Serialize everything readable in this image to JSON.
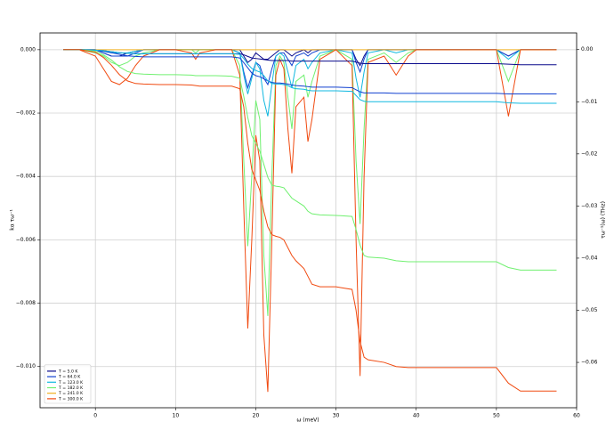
{
  "chart_data": {
    "type": "line",
    "xlabel": "ω (meV)",
    "ylabel": "kα τω⁻¹",
    "y2label": "τω⁻¹(ω) (THz)",
    "x": [
      -4,
      -2,
      0,
      1,
      2,
      3,
      4,
      5,
      6,
      8,
      10,
      12,
      12.5,
      13,
      15,
      17,
      18,
      18.5,
      19,
      19.5,
      20,
      20.5,
      21,
      21.5,
      22,
      22.5,
      23,
      23.5,
      24,
      24.5,
      25,
      26,
      26.5,
      27,
      28,
      30,
      32,
      32.5,
      33,
      33.5,
      34,
      36,
      37.5,
      39,
      40,
      45,
      50,
      51.5,
      53,
      57.5
    ],
    "xlim": [
      -6.9,
      60
    ],
    "xticks": [
      0,
      10,
      20,
      30,
      40,
      50,
      60
    ],
    "ylim": [
      -0.0113,
      0.00053
    ],
    "yticks": [
      {
        "value": 0,
        "label": "0.000"
      },
      {
        "value": -0.002,
        "label": "−0.002"
      },
      {
        "value": -0.004,
        "label": "−0.004"
      },
      {
        "value": -0.006,
        "label": "−0.006"
      },
      {
        "value": -0.008,
        "label": "−0.008"
      },
      {
        "value": -0.01,
        "label": "−0.010"
      }
    ],
    "y2lim": [
      -0.0687,
      0.0032
    ],
    "y2ticks": [
      {
        "value": 0,
        "label": "0.00"
      },
      {
        "value": -0.01,
        "label": "−0.01"
      },
      {
        "value": -0.02,
        "label": "−0.02"
      },
      {
        "value": -0.03,
        "label": "−0.03"
      },
      {
        "value": -0.04,
        "label": "−0.04"
      },
      {
        "value": -0.05,
        "label": "−0.05"
      },
      {
        "value": -0.06,
        "label": "−0.06"
      }
    ],
    "grid": true,
    "legend": "lower left",
    "series": [
      {
        "name": "T = 5.0 K",
        "color": "#0a0a8c",
        "values": [
          0,
          0,
          0,
          -0.0001,
          -0.0002,
          -0.0002,
          -0.0001,
          -5e-05,
          0,
          0,
          0,
          0,
          0,
          0,
          0,
          0,
          0,
          -0.0002,
          -0.0004,
          -0.0003,
          -0.0001,
          -0.0002,
          -0.0003,
          -0.0003,
          -0.0002,
          -0.0001,
          0,
          0,
          -0.0001,
          -0.0002,
          -0.0001,
          0,
          -0.0001,
          0,
          0,
          0,
          0,
          -0.0003,
          -0.0005,
          -0.0002,
          0,
          0,
          0,
          0,
          0,
          0,
          0,
          -0.0002,
          0,
          0
        ]
      },
      {
        "name": "T = 64.0 K",
        "color": "#1040d0",
        "values": [
          0,
          0,
          0,
          -0.0001,
          -0.0002,
          -0.0002,
          -0.0002,
          -0.0001,
          0,
          0,
          0,
          0,
          0,
          0,
          0,
          0,
          -0.0001,
          -0.0007,
          -0.0012,
          -0.0008,
          -0.0004,
          -0.0005,
          -0.0009,
          -0.0011,
          -0.0006,
          -0.0002,
          -0.0001,
          -0.0001,
          -0.0003,
          -0.0005,
          -0.0002,
          -0.0001,
          -0.0002,
          -0.0001,
          0,
          0,
          0,
          -0.0004,
          -0.0007,
          -0.0003,
          0,
          0,
          0,
          0,
          0,
          0,
          0,
          -0.0002,
          0,
          0
        ]
      },
      {
        "name": "T = 123.0 K",
        "color": "#10b8e0",
        "values": [
          0,
          0,
          0,
          -5e-05,
          -0.0001,
          -0.0001,
          -0.0001,
          -5e-05,
          0,
          0,
          0,
          0,
          0,
          0,
          0,
          0,
          -0.0001,
          -0.0008,
          -0.0014,
          -0.0009,
          -0.0004,
          -0.0006,
          -0.0016,
          -0.0021,
          -0.0011,
          -0.0002,
          -0.0001,
          -0.0002,
          -0.0007,
          -0.0012,
          -0.0005,
          -0.0003,
          -0.0006,
          -0.0004,
          -0.0001,
          0,
          -0.0001,
          -0.0009,
          -0.0015,
          -0.0007,
          -0.0001,
          0,
          -0.0001,
          0,
          0,
          0,
          0,
          -0.0003,
          0,
          0
        ]
      },
      {
        "name": "T = 182.0 K",
        "color": "#70f070",
        "values": [
          0,
          0,
          -0.0001,
          -0.0002,
          -0.0004,
          -0.0005,
          -0.0004,
          -0.0002,
          -0.0001,
          0,
          0,
          0,
          -0.0001,
          0,
          0,
          0,
          -0.0005,
          -0.0035,
          -0.0062,
          -0.004,
          -0.0016,
          -0.0022,
          -0.0065,
          -0.0084,
          -0.004,
          -0.0005,
          -0.0002,
          -0.0004,
          -0.0015,
          -0.0025,
          -0.001,
          -0.0008,
          -0.0015,
          -0.001,
          -0.0002,
          0,
          -0.0003,
          -0.0035,
          -0.0055,
          -0.0025,
          -0.0003,
          -0.0001,
          -0.0004,
          -0.0001,
          0,
          0,
          0,
          -0.001,
          0,
          0
        ]
      },
      {
        "name": "T = 241.0 K",
        "color": "#f0b020",
        "values": [
          0,
          0,
          0,
          0,
          0,
          0,
          0,
          0,
          0,
          0,
          0,
          0,
          0,
          0,
          0,
          0,
          0,
          0,
          0,
          0,
          0,
          0,
          0,
          0,
          0,
          0,
          0,
          0,
          0,
          0,
          0,
          0,
          0,
          0,
          0,
          0,
          0,
          0,
          0,
          0,
          0,
          0,
          0,
          0,
          0,
          0,
          0,
          0,
          0,
          0
        ]
      },
      {
        "name": "T = 300.0 K",
        "color": "#f04a10",
        "values": [
          0,
          0,
          -0.0002,
          -0.0006,
          -0.001,
          -0.0011,
          -0.0009,
          -0.0005,
          -0.0002,
          0,
          0,
          -0.0001,
          -0.0003,
          -0.0001,
          0,
          0,
          -0.0008,
          -0.005,
          -0.0088,
          -0.006,
          -0.0027,
          -0.0035,
          -0.009,
          -0.0108,
          -0.006,
          -0.0008,
          -0.0003,
          -0.0006,
          -0.0025,
          -0.0039,
          -0.0018,
          -0.0015,
          -0.0029,
          -0.0022,
          -0.0003,
          0,
          -0.0005,
          -0.006,
          -0.0103,
          -0.004,
          -0.0004,
          -0.0002,
          -0.0008,
          -0.0002,
          0,
          0,
          0,
          -0.0021,
          0,
          0
        ]
      },
      {
        "axis": "y2",
        "color": "#0a0a8c",
        "values": [
          0,
          0,
          -0.0001,
          -0.0002,
          -0.0004,
          -0.0006,
          -0.0007,
          -0.0008,
          -0.0008,
          -0.0008,
          -0.0008,
          -0.0008,
          -0.0008,
          -0.0008,
          -0.0008,
          -0.0008,
          -0.0008,
          -0.001,
          -0.0013,
          -0.0016,
          -0.0017,
          -0.0018,
          -0.0019,
          -0.002,
          -0.0021,
          -0.0021,
          -0.0021,
          -0.0021,
          -0.0021,
          -0.0022,
          -0.0022,
          -0.0022,
          -0.0022,
          -0.0022,
          -0.0022,
          -0.0022,
          -0.0022,
          -0.0024,
          -0.0026,
          -0.0027,
          -0.0027,
          -0.0027,
          -0.0027,
          -0.0027,
          -0.0027,
          -0.0027,
          -0.0027,
          -0.0028,
          -0.0029,
          -0.0029
        ]
      },
      {
        "axis": "y2",
        "color": "#1040d0",
        "values": [
          0,
          0,
          -0.0001,
          -0.0003,
          -0.0006,
          -0.0009,
          -0.0012,
          -0.0013,
          -0.0014,
          -0.0014,
          -0.0014,
          -0.0014,
          -0.0014,
          -0.0014,
          -0.0014,
          -0.0014,
          -0.0016,
          -0.0025,
          -0.0035,
          -0.0045,
          -0.005,
          -0.0052,
          -0.0056,
          -0.006,
          -0.0063,
          -0.0064,
          -0.0064,
          -0.0065,
          -0.0066,
          -0.0068,
          -0.0069,
          -0.007,
          -0.0071,
          -0.0072,
          -0.0072,
          -0.0072,
          -0.0073,
          -0.0077,
          -0.0081,
          -0.0083,
          -0.0083,
          -0.0083,
          -0.0084,
          -0.0084,
          -0.0084,
          -0.0084,
          -0.0084,
          -0.0085,
          -0.0085,
          -0.0085
        ]
      },
      {
        "axis": "y2",
        "color": "#10b8e0",
        "values": [
          0,
          0,
          -0.0001,
          -0.0002,
          -0.0004,
          -0.0006,
          -0.0007,
          -0.0008,
          -0.0008,
          -0.0008,
          -0.0008,
          -0.0008,
          -0.0008,
          -0.0008,
          -0.0008,
          -0.0008,
          -0.0009,
          -0.0017,
          -0.0028,
          -0.0036,
          -0.004,
          -0.0043,
          -0.005,
          -0.006,
          -0.0065,
          -0.0066,
          -0.0066,
          -0.0067,
          -0.0069,
          -0.0073,
          -0.0075,
          -0.0076,
          -0.0078,
          -0.0079,
          -0.0079,
          -0.0079,
          -0.008,
          -0.0088,
          -0.0096,
          -0.0099,
          -0.01,
          -0.01,
          -0.01,
          -0.01,
          -0.01,
          -0.01,
          -0.01,
          -0.0102,
          -0.0103,
          -0.0103
        ]
      },
      {
        "axis": "y2",
        "color": "#70f070",
        "values": [
          0,
          0,
          -0.0003,
          -0.001,
          -0.002,
          -0.0033,
          -0.0042,
          -0.0046,
          -0.0047,
          -0.0048,
          -0.0048,
          -0.0049,
          -0.005,
          -0.005,
          -0.005,
          -0.0051,
          -0.0055,
          -0.009,
          -0.013,
          -0.0165,
          -0.018,
          -0.0195,
          -0.022,
          -0.0245,
          -0.026,
          -0.0262,
          -0.0263,
          -0.0265,
          -0.0275,
          -0.0285,
          -0.029,
          -0.03,
          -0.031,
          -0.0315,
          -0.0317,
          -0.0318,
          -0.032,
          -0.0345,
          -0.0375,
          -0.0395,
          -0.0398,
          -0.04,
          -0.0405,
          -0.0407,
          -0.0407,
          -0.0407,
          -0.0407,
          -0.0418,
          -0.0423,
          -0.0423
        ]
      },
      {
        "axis": "y2",
        "color": "#f04a10",
        "values": [
          0,
          0,
          -0.0005,
          -0.0015,
          -0.003,
          -0.0048,
          -0.006,
          -0.0065,
          -0.0066,
          -0.0067,
          -0.0067,
          -0.0068,
          -0.0069,
          -0.007,
          -0.007,
          -0.007,
          -0.0075,
          -0.011,
          -0.018,
          -0.023,
          -0.025,
          -0.027,
          -0.031,
          -0.034,
          -0.0355,
          -0.0358,
          -0.036,
          -0.0365,
          -0.038,
          -0.0395,
          -0.0405,
          -0.042,
          -0.0435,
          -0.045,
          -0.0455,
          -0.0455,
          -0.046,
          -0.05,
          -0.056,
          -0.059,
          -0.0595,
          -0.06,
          -0.0608,
          -0.061,
          -0.061,
          -0.061,
          -0.061,
          -0.064,
          -0.0655,
          -0.0655
        ]
      }
    ]
  }
}
